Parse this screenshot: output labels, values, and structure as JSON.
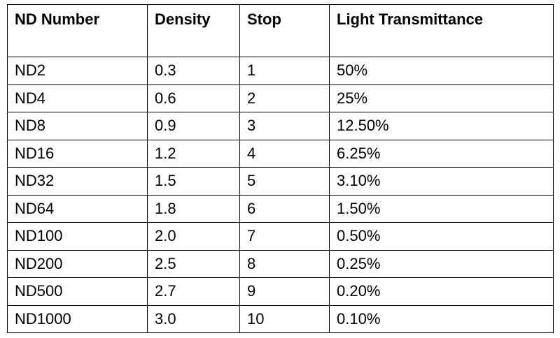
{
  "table": {
    "header": [
      "ND Number",
      "Density",
      "Stop",
      "Light Transmittance"
    ],
    "rows": [
      [
        "ND2",
        "0.3",
        "1",
        "50%"
      ],
      [
        "ND4",
        "0.6",
        "2",
        "25%"
      ],
      [
        "ND8",
        "0.9",
        "3",
        "12.50%"
      ],
      [
        "ND16",
        "1.2",
        "4",
        "6.25%"
      ],
      [
        "ND32",
        "1.5",
        "5",
        "3.10%"
      ],
      [
        "ND64",
        "1.8",
        "6",
        "1.50%"
      ],
      [
        "ND100",
        "2.0",
        "7",
        "0.50%"
      ],
      [
        "ND200",
        "2.5",
        "8",
        "0.25%"
      ],
      [
        "ND500",
        "2.7",
        "9",
        "0.20%"
      ],
      [
        "ND1000",
        "3.0",
        "10",
        "0.10%"
      ]
    ]
  }
}
